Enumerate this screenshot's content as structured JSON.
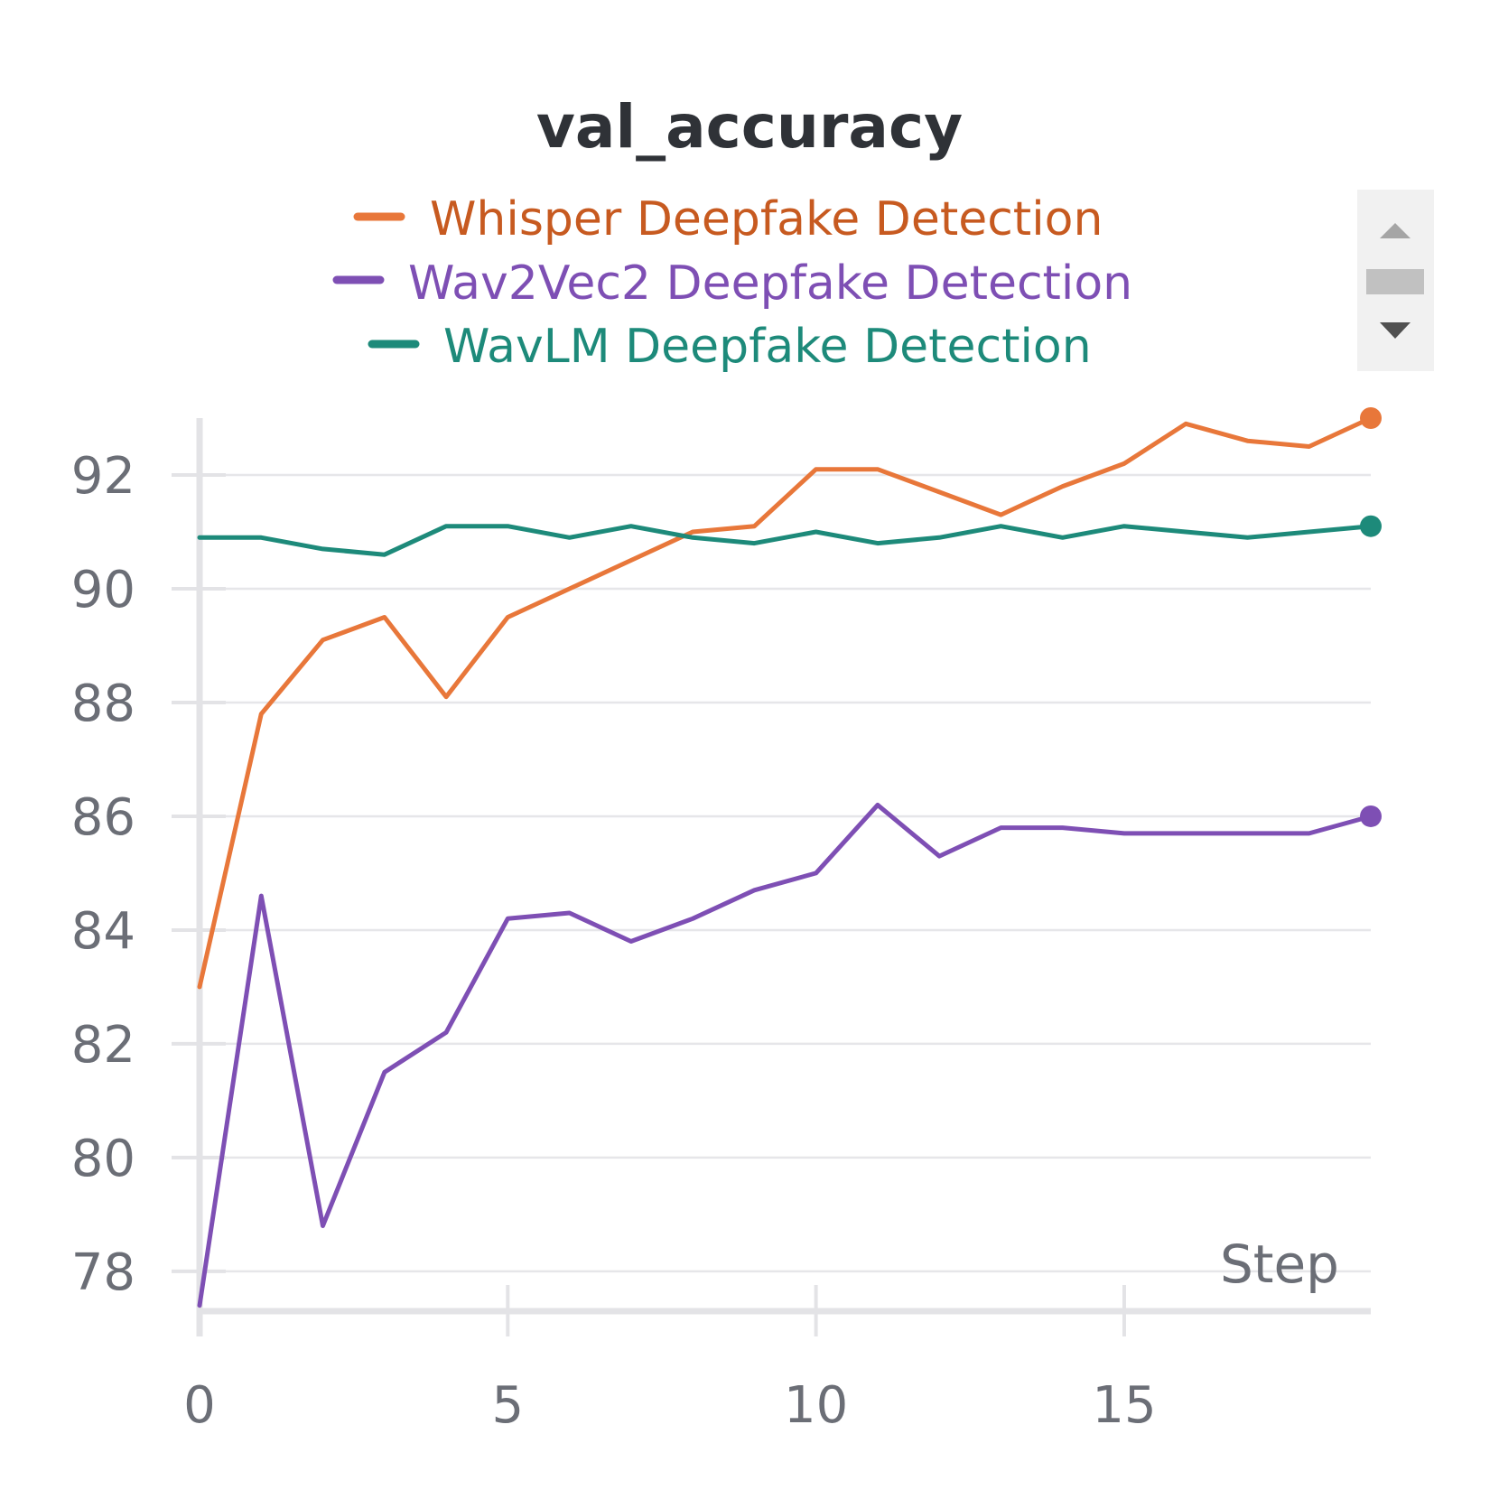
{
  "chart_data": {
    "type": "line",
    "title": "val_accuracy",
    "xlabel": "Step",
    "ylabel": "",
    "xlim": [
      0,
      19
    ],
    "ylim": [
      77.3,
      93.0
    ],
    "xticks": [
      0,
      5,
      10,
      15
    ],
    "yticks": [
      78,
      80,
      82,
      84,
      86,
      88,
      90,
      92
    ],
    "grid": true,
    "legend_position": "top-center",
    "x": [
      0,
      1,
      2,
      3,
      4,
      5,
      6,
      7,
      8,
      9,
      10,
      11,
      12,
      13,
      14,
      15,
      16,
      17,
      18,
      19
    ],
    "series": [
      {
        "name": "Whisper Deepfake Detection",
        "color": "#e8773a",
        "values": [
          83.0,
          87.8,
          89.1,
          89.5,
          88.1,
          89.5,
          90.0,
          90.5,
          91.0,
          91.1,
          92.1,
          92.1,
          91.7,
          91.3,
          91.8,
          92.2,
          92.9,
          92.6,
          92.5,
          93.0
        ]
      },
      {
        "name": "Wav2Vec2 Deepfake Detection",
        "color": "#7e4fb4",
        "values": [
          77.4,
          84.6,
          78.8,
          81.5,
          82.2,
          84.2,
          84.3,
          83.8,
          84.2,
          84.7,
          85.0,
          86.2,
          85.3,
          85.8,
          85.8,
          85.7,
          85.7,
          85.7,
          85.7,
          86.0
        ]
      },
      {
        "name": "WavLM Deepfake Detection",
        "color": "#1d8a7a",
        "values": [
          90.9,
          90.9,
          90.7,
          90.6,
          91.1,
          91.1,
          90.9,
          91.1,
          90.9,
          90.8,
          91.0,
          90.8,
          90.9,
          91.1,
          90.9,
          91.1,
          91.0,
          90.9,
          91.0,
          91.1
        ]
      }
    ]
  },
  "legend": {
    "items": [
      {
        "label": "Whisper Deepfake Detection",
        "color": "#e8773a",
        "text_color": "#c75a20"
      },
      {
        "label": "Wav2Vec2 Deepfake Detection",
        "color": "#7e4fb4",
        "text_color": "#7e4fb4"
      },
      {
        "label": "WavLM Deepfake Detection",
        "color": "#1d8a7a",
        "text_color": "#1d8a7a"
      }
    ],
    "scroll_up_icon": "triangle-up-icon",
    "scroll_down_icon": "triangle-down-icon"
  }
}
